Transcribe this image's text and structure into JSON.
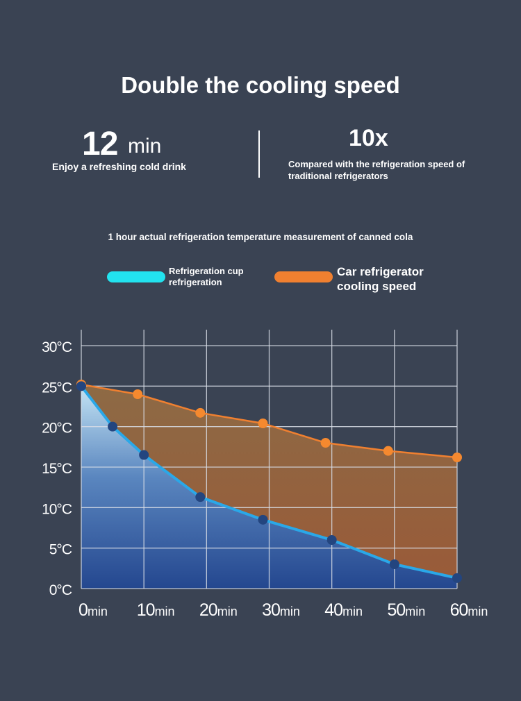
{
  "title": "Double the cooling speed",
  "stat1": {
    "value": "12",
    "unit": "min",
    "desc": "Enjoy a refreshing cold drink"
  },
  "stat2": {
    "value": "10x",
    "desc": "Compared with the refrigeration speed of traditional refrigerators"
  },
  "chart_data": {
    "type": "area",
    "title": "1 hour actual refrigeration temperature measurement of canned cola",
    "xlabel": "",
    "ylabel": "",
    "xlim": [
      0,
      60
    ],
    "ylim": [
      0,
      30
    ],
    "x_ticks": [
      0,
      10,
      20,
      30,
      40,
      50,
      60
    ],
    "x_tick_labels": [
      {
        "n": "0",
        "u": "min"
      },
      {
        "n": "10",
        "u": "min"
      },
      {
        "n": "20",
        "u": "min"
      },
      {
        "n": "30",
        "u": "min"
      },
      {
        "n": "40",
        "u": "min"
      },
      {
        "n": "50",
        "u": "min"
      },
      {
        "n": "60",
        "u": "min"
      }
    ],
    "y_ticks": [
      0,
      5,
      10,
      15,
      20,
      25,
      30
    ],
    "y_tick_labels": [
      "0°C",
      "5°C",
      "10°C",
      "15°C",
      "20°C",
      "25°C",
      "30°C"
    ],
    "grid": true,
    "legend_position": "top",
    "series": [
      {
        "name": "Refrigeration cup refrigeration",
        "color": "#2aa8e8",
        "marker_color": "#23457f",
        "x": [
          0,
          5,
          10,
          19,
          29,
          40,
          50,
          60
        ],
        "y": [
          25,
          20,
          16.5,
          11.3,
          8.5,
          6,
          3,
          1.3
        ]
      },
      {
        "name": "Car refrigerator cooling speed",
        "color": "#f08030",
        "marker_color": "#f5892f",
        "x": [
          0,
          9,
          19,
          29,
          39,
          49,
          60
        ],
        "y": [
          25.2,
          24,
          21.7,
          20.4,
          18,
          17,
          16.2
        ]
      }
    ]
  },
  "legend": {
    "swatch1": "#22e3ef",
    "swatch2": "#f08030"
  }
}
